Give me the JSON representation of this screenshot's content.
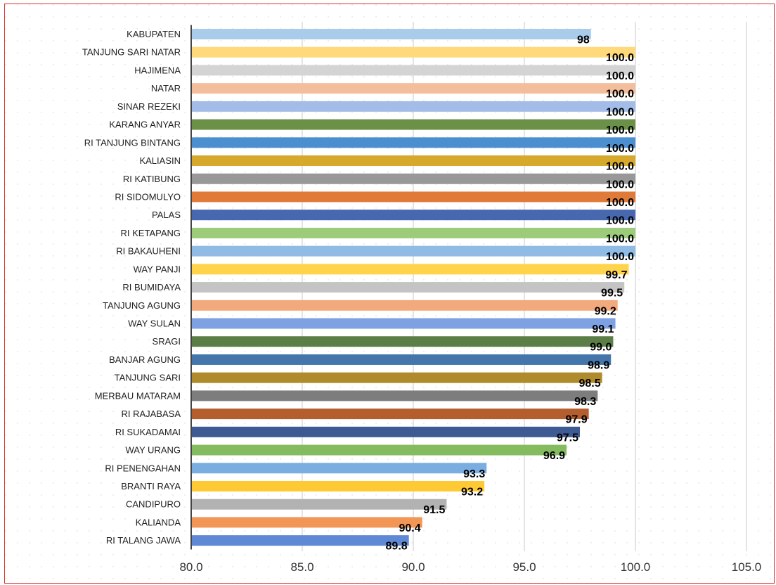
{
  "chart_data": {
    "type": "bar",
    "orientation": "horizontal",
    "title": "",
    "xlabel": "",
    "ylabel": "",
    "categories": [
      "KABUPATEN",
      "TANJUNG SARI NATAR",
      "HAJIMENA",
      "NATAR",
      "SINAR REZEKI",
      "KARANG ANYAR",
      "RI TANJUNG BINTANG",
      "KALIASIN",
      "RI KATIBUNG",
      "RI SIDOMULYO",
      "PALAS",
      "RI KETAPANG",
      "RI BAKAUHENI",
      "WAY PANJI",
      "RI BUMIDAYA",
      "TANJUNG AGUNG",
      "WAY SULAN",
      "SRAGI",
      "BANJAR AGUNG",
      "TANJUNG SARI",
      "MERBAU MATARAM",
      "RI RAJABASA",
      "RI SUKADAMAI",
      "WAY URANG",
      "RI PENENGAHAN",
      "BRANTI RAYA",
      "CANDIPURO",
      "KALIANDA",
      "RI TALANG JAWA"
    ],
    "values": [
      98,
      100.0,
      100.0,
      100.0,
      100.0,
      100.0,
      100.0,
      100.0,
      100.0,
      100.0,
      100.0,
      100.0,
      100.0,
      99.7,
      99.5,
      99.2,
      99.1,
      99.0,
      98.9,
      98.5,
      98.3,
      97.9,
      97.5,
      96.9,
      93.3,
      93.2,
      91.5,
      90.4,
      89.8
    ],
    "data_labels": [
      "98",
      "100.0",
      "100.0",
      "100.0",
      "100.0",
      "100.0",
      "100.0",
      "100.0",
      "100.0",
      "100.0",
      "100.0",
      "100.0",
      "100.0",
      "99.7",
      "99.5",
      "99.2",
      "99.1",
      "99.0",
      "98.9",
      "98.5",
      "98.3",
      "97.9",
      "97.5",
      "96.9",
      "93.3",
      "93.2",
      "91.5",
      "90.4",
      "89.8"
    ],
    "colors": [
      "#A9CCEB",
      "#FFD97A",
      "#D4D4D4",
      "#F4BE9C",
      "#A4BDE8",
      "#6A9147",
      "#4C8FD1",
      "#D6A92C",
      "#989898",
      "#E07A38",
      "#4767AE",
      "#9CCC7A",
      "#8FBBE5",
      "#FFD44A",
      "#C4C4C4",
      "#F2A97C",
      "#7EA1E3",
      "#5A7E45",
      "#4576AB",
      "#B08B2C",
      "#7D7D7D",
      "#B45E2E",
      "#3E5A93",
      "#84BB5F",
      "#7AAEE0",
      "#FFC933",
      "#B2B2B2",
      "#F29656",
      "#5F88D5"
    ],
    "xlim": [
      80.0,
      105.0
    ],
    "xticks": [
      "80.0",
      "85.0",
      "90.0",
      "95.0",
      "100.0",
      "105.0"
    ],
    "grid": true,
    "legend": "none"
  }
}
